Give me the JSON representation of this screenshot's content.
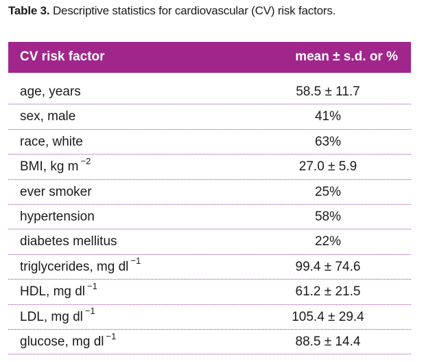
{
  "caption": {
    "label": "Table 3.",
    "text": "Descriptive statistics for cardiovascular (CV) risk factors."
  },
  "table": {
    "headers": {
      "factor": "CV risk factor",
      "value": "mean ± s.d. or %"
    },
    "rows": [
      {
        "factor": "age, years",
        "sup": "",
        "value": "58.5 ± 11.7"
      },
      {
        "factor": "sex, male",
        "sup": "",
        "value": "41%"
      },
      {
        "factor": "race, white",
        "sup": "",
        "value": "63%"
      },
      {
        "factor": "BMI, kg m",
        "sup": "−2",
        "value": "27.0 ± 5.9"
      },
      {
        "factor": "ever smoker",
        "sup": "",
        "value": "25%"
      },
      {
        "factor": "hypertension",
        "sup": "",
        "value": "58%"
      },
      {
        "factor": "diabetes mellitus",
        "sup": "",
        "value": "22%"
      },
      {
        "factor": "triglycerides, mg dl",
        "sup": "−1",
        "value": "99.4 ± 74.6"
      },
      {
        "factor": "HDL, mg dl",
        "sup": "−1",
        "value": "61.2 ± 21.5"
      },
      {
        "factor": "LDL, mg dl",
        "sup": "−1",
        "value": "105.4 ± 29.4"
      },
      {
        "factor": "glucose, mg dl",
        "sup": "−1",
        "value": "88.5 ± 14.4"
      }
    ]
  },
  "colors": {
    "header_bg": "#a0268b",
    "header_text": "#ffffff",
    "divider": "#9a3aa0"
  }
}
